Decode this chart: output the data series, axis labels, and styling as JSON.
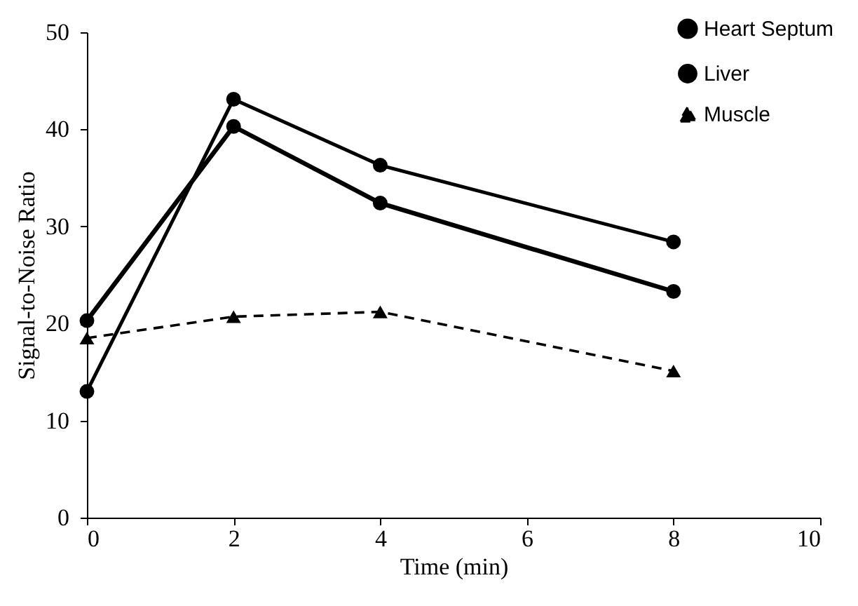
{
  "chart_data": {
    "type": "line",
    "xlabel": "Time (min)",
    "ylabel": "Signal-to-Noise Ratio",
    "x": [
      0,
      2,
      4,
      8
    ],
    "xlim": [
      0,
      10
    ],
    "xticks": [
      0,
      2,
      4,
      6,
      8,
      10
    ],
    "ylim": [
      0,
      50
    ],
    "yticks": [
      0,
      10,
      20,
      30,
      40,
      50
    ],
    "grid": false,
    "legend": "top right",
    "series": [
      {
        "name": "Heart Septum",
        "color": "#000000",
        "marker": "circle",
        "line_style": "solid",
        "values": [
          20.3,
          40.3,
          32.4,
          23.3
        ]
      },
      {
        "name": "Liver",
        "color": "#000000",
        "marker": "circle",
        "line_style": "solid",
        "values": [
          13.0,
          43.1,
          36.3,
          28.4
        ]
      },
      {
        "name": "Muscle",
        "color": "#000000",
        "marker": "triangle",
        "line_style": "dashed",
        "values": [
          18.5,
          20.7,
          21.2,
          15.1
        ]
      }
    ]
  }
}
